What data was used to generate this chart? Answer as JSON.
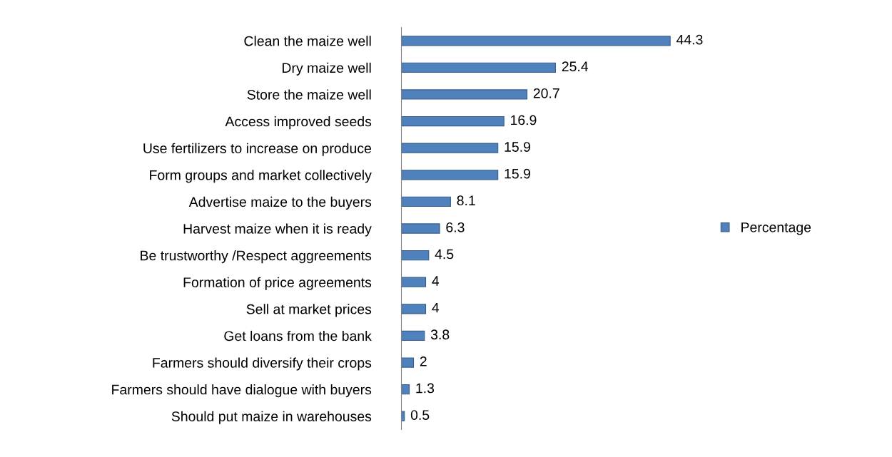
{
  "chart_data": {
    "type": "bar",
    "orientation": "horizontal",
    "categories": [
      "Clean the maize well",
      "Dry maize well",
      "Store the maize well",
      "Access improved seeds",
      "Use fertilizers to increase on produce",
      "Form groups and market collectively",
      "Advertise maize to the buyers",
      "Harvest maize when it is ready",
      "Be trustworthy /Respect aggreements",
      "Formation of price agreements",
      "Sell at market prices",
      "Get loans from the bank",
      "Farmers should diversify their crops",
      "Farmers should have dialogue with buyers",
      "Should put maize in warehouses"
    ],
    "series": [
      {
        "name": "Percentage",
        "color": "#4f81bd",
        "values": [
          44.3,
          25.4,
          20.7,
          16.9,
          15.9,
          15.9,
          8.1,
          6.3,
          4.5,
          4,
          4,
          3.8,
          2,
          1.3,
          0.5
        ]
      }
    ],
    "data_labels": true,
    "legend": "right",
    "grid": false
  }
}
